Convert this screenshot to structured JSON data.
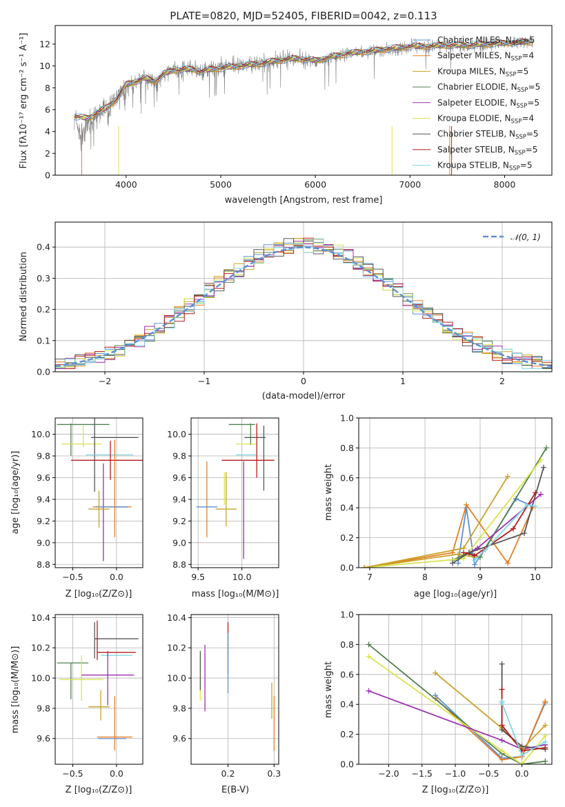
{
  "figure": {
    "title": "PLATE=0820, MJD=52405, FIBERID=0042, z=0.113"
  },
  "series_colors": [
    "#5b8fd6",
    "#e57d23",
    "#c9a227",
    "#4f7e4f",
    "#9b2fae",
    "#d9e34a",
    "#555555",
    "#b5191a",
    "#7fd6e4"
  ],
  "series_names": [
    "Chabrier MILES, N_SSP=5",
    "Salpeter MILES, N_SSP=4",
    "Kroupa MILES, N_SSP=5",
    "Chabrier ELODIE, N_SSP=5",
    "Salpeter ELODIE, N_SSP=5",
    "Kroupa ELODIE, N_SSP=4",
    "Chabrier STELIB, N_SSP=5",
    "Salpeter STELIB, N_SSP=5",
    "Kroupa STELIB, N_SSP=5"
  ],
  "chart_data": [
    {
      "id": "spectrum",
      "type": "line",
      "xlabel": "wavelength [Angstrom, rest frame]",
      "ylabel": "Flux [f_λ 10^-17 erg cm^-2 s^-1 A^-1]",
      "xlim": [
        3250,
        8500
      ],
      "ylim": [
        0,
        13.7
      ],
      "xticks": [
        4000,
        5000,
        6000,
        7000,
        8000
      ],
      "yticks": [
        0,
        2,
        4,
        6,
        8,
        10,
        12
      ],
      "legend_position": "right",
      "model_continuum": {
        "x": [
          3450,
          3600,
          3700,
          3800,
          3900,
          4000,
          4100,
          4200,
          4300,
          4400,
          4500,
          4600,
          4700,
          4800,
          4900,
          5000,
          5200,
          5400,
          5600,
          5800,
          6000,
          6200,
          6400,
          6600,
          6800,
          7000,
          7200,
          7400,
          7600,
          7800,
          8000,
          8200,
          8300
        ],
        "y": [
          5.4,
          5.2,
          5.8,
          6.2,
          7.0,
          8.3,
          8.6,
          8.9,
          8.6,
          9.3,
          9.6,
          9.7,
          9.7,
          9.5,
          9.7,
          9.8,
          10.0,
          10.2,
          10.5,
          10.7,
          10.5,
          10.9,
          11.2,
          11.4,
          11.6,
          11.8,
          11.8,
          11.9,
          11.9,
          12.0,
          12.1,
          12.2,
          12.2
        ]
      },
      "data_curve": {
        "x": [
          3450,
          3520,
          3600,
          3700,
          3800,
          3900,
          4000,
          4100,
          4200,
          4300,
          4400,
          4500,
          4600,
          4700,
          4800,
          4900,
          5000,
          5200,
          5400,
          5600,
          5800,
          6000,
          6200,
          6400,
          6600,
          6800,
          7000,
          7200,
          7400,
          7600,
          7800,
          8000,
          8200,
          8300
        ],
        "y": [
          5.6,
          3.5,
          4.8,
          5.4,
          5.9,
          7.0,
          8.0,
          8.6,
          8.8,
          8.4,
          9.2,
          9.6,
          9.6,
          9.8,
          9.3,
          9.8,
          9.9,
          10.1,
          10.2,
          10.5,
          10.7,
          10.4,
          10.8,
          11.2,
          11.4,
          11.5,
          11.8,
          11.7,
          11.9,
          11.8,
          11.9,
          12.1,
          12.2,
          12.3
        ]
      }
    },
    {
      "id": "residual-histogram",
      "type": "histogram",
      "xlabel": "(data-model)/error",
      "ylabel": "Normed distribution",
      "xlim": [
        -2.5,
        2.5
      ],
      "ylim": [
        0,
        0.48
      ],
      "xticks": [
        -2,
        -1,
        0,
        1,
        2
      ],
      "yticks": [
        0,
        0.1,
        0.2,
        0.3,
        0.4
      ],
      "reference_curve_label": "N(0,1)",
      "bin_width": 0.1,
      "legend_position": "top-right"
    },
    {
      "id": "age-vs-Z",
      "type": "scatter",
      "xlabel": "Z [log10(Z/Z_sun)]",
      "ylabel": "age  [log10(age/yr)]",
      "xlim": [
        -0.7,
        0.3
      ],
      "ylim": [
        8.77,
        10.15
      ],
      "xticks": [
        -0.5,
        0.0
      ],
      "yticks": [
        8.8,
        9.0,
        9.2,
        9.4,
        9.6,
        9.8,
        10.0
      ],
      "errorbars": [
        {
          "s": 3,
          "x": -0.38,
          "xerr": 0.3,
          "y": 10.09,
          "yerr": 0.0
        },
        {
          "s": 3,
          "x": -0.52,
          "xerr": 0.0,
          "y": 9.95,
          "yerr": 0.15
        },
        {
          "s": 5,
          "x": -0.4,
          "xerr": 0.23,
          "y": 9.91,
          "yerr": 0.0
        },
        {
          "s": 5,
          "x": -0.38,
          "xerr": 0.0,
          "y": 9.98,
          "yerr": 0.1
        },
        {
          "s": 6,
          "x": -0.02,
          "xerr": 0.27,
          "y": 9.97,
          "yerr": 0.0
        },
        {
          "s": 6,
          "x": -0.25,
          "xerr": 0.0,
          "y": 9.82,
          "yerr": 0.35
        },
        {
          "s": 8,
          "x": -0.08,
          "xerr": 0.27,
          "y": 9.81,
          "yerr": 0.0
        },
        {
          "s": 7,
          "x": -0.07,
          "xerr": 0.45,
          "y": 9.76,
          "yerr": 0.0
        },
        {
          "s": 7,
          "x": -0.07,
          "xerr": 0.0,
          "y": 9.76,
          "yerr": 0.18
        },
        {
          "s": 4,
          "x": -0.15,
          "xerr": 0.0,
          "y": 9.28,
          "yerr": 0.45
        },
        {
          "s": 1,
          "x": -0.05,
          "xerr": 0.22,
          "y": 9.33,
          "yerr": 0.0
        },
        {
          "s": 1,
          "x": -0.02,
          "xerr": 0.0,
          "y": 9.5,
          "yerr": 0.45
        },
        {
          "s": 0,
          "x": -0.05,
          "xerr": 0.18,
          "y": 9.33,
          "yerr": 0.0
        },
        {
          "s": 2,
          "x": -0.2,
          "xerr": 0.12,
          "y": 9.31,
          "yerr": 0.0
        },
        {
          "s": 2,
          "x": -0.2,
          "xerr": 0.0,
          "y": 9.31,
          "yerr": 0.17
        }
      ]
    },
    {
      "id": "age-vs-mass",
      "type": "scatter",
      "xlabel": "mass [log10(M/M_sun)]",
      "ylabel": "",
      "xlim": [
        9.42,
        10.42
      ],
      "ylim": [
        8.77,
        10.15
      ],
      "xticks": [
        9.5,
        10.0
      ],
      "yticks": [
        8.8,
        9.0,
        9.2,
        9.4,
        9.6,
        9.8,
        10.0
      ],
      "errorbars": [
        {
          "s": 3,
          "x": 10.0,
          "xerr": 0.15,
          "y": 10.09,
          "yerr": 0.0
        },
        {
          "s": 3,
          "x": 10.1,
          "xerr": 0.0,
          "y": 10.0,
          "yerr": 0.1
        },
        {
          "s": 6,
          "x": 10.15,
          "xerr": 0.12,
          "y": 9.97,
          "yerr": 0.0
        },
        {
          "s": 6,
          "x": 10.25,
          "xerr": 0.0,
          "y": 9.78,
          "yerr": 0.3
        },
        {
          "s": 5,
          "x": 10.05,
          "xerr": 0.12,
          "y": 9.91,
          "yerr": 0.0
        },
        {
          "s": 8,
          "x": 10.05,
          "xerr": 0.12,
          "y": 9.81,
          "yerr": 0.0
        },
        {
          "s": 7,
          "x": 10.07,
          "xerr": 0.3,
          "y": 9.76,
          "yerr": 0.0
        },
        {
          "s": 7,
          "x": 10.17,
          "xerr": 0.0,
          "y": 9.85,
          "yerr": 0.25
        },
        {
          "s": 4,
          "x": 10.02,
          "xerr": 0.0,
          "y": 9.3,
          "yerr": 0.45
        },
        {
          "s": 1,
          "x": 9.6,
          "xerr": 0.0,
          "y": 9.4,
          "yerr": 0.35
        },
        {
          "s": 0,
          "x": 9.6,
          "xerr": 0.12,
          "y": 9.33,
          "yerr": 0.0
        },
        {
          "s": 2,
          "x": 9.82,
          "xerr": 0.12,
          "y": 9.31,
          "yerr": 0.0
        },
        {
          "s": 2,
          "x": 9.82,
          "xerr": 0.0,
          "y": 9.4,
          "yerr": 0.25
        },
        {
          "s": 5,
          "x": 9.8,
          "xerr": 0.0,
          "y": 9.5,
          "yerr": 0.15
        }
      ]
    },
    {
      "id": "mass-weight-vs-age",
      "type": "line",
      "xlabel": "age  [log10(age/yr)]",
      "ylabel": "mass weight",
      "xlim": [
        6.8,
        10.3
      ],
      "ylim": [
        0,
        1.0
      ],
      "xticks": [
        7,
        8,
        9,
        10
      ],
      "yticks": [
        0,
        0.2,
        0.4,
        0.6,
        0.8,
        1.0
      ],
      "series": [
        {
          "s": 0,
          "x": [
            8.6,
            8.75,
            8.9,
            9.65,
            9.95
          ],
          "y": [
            0.03,
            0.4,
            0.02,
            0.46,
            0.41
          ]
        },
        {
          "s": 1,
          "x": [
            6.9,
            8.5,
            8.75,
            9.5,
            9.95
          ],
          "y": [
            0.0,
            0.1,
            0.42,
            0.03,
            0.4
          ]
        },
        {
          "s": 2,
          "x": [
            6.9,
            8.6,
            8.9
          ],
          "y": [
            0.0,
            0.09,
            0.07
          ]
        },
        {
          "s": 3,
          "x": [
            8.5,
            8.8,
            9.0,
            10.2
          ],
          "y": [
            0.05,
            0.1,
            0.07,
            0.8
          ]
        },
        {
          "s": 4,
          "x": [
            8.8,
            8.95,
            10.1
          ],
          "y": [
            0.1,
            0.13,
            0.49
          ]
        },
        {
          "s": 5,
          "x": [
            6.9,
            8.7,
            10.1
          ],
          "y": [
            0.0,
            0.06,
            0.72
          ]
        },
        {
          "s": 6,
          "x": [
            8.5,
            8.8,
            9.8,
            10.15
          ],
          "y": [
            0.03,
            0.1,
            0.23,
            0.67
          ]
        },
        {
          "s": 7,
          "x": [
            8.7,
            8.9,
            9.6,
            10.0
          ],
          "y": [
            0.1,
            0.08,
            0.26,
            0.5
          ]
        },
        {
          "s": 8,
          "x": [
            8.9,
            9.1,
            9.85,
            10.0
          ],
          "y": [
            0.05,
            0.12,
            0.42,
            0.41
          ]
        },
        {
          "s": 2,
          "x": [
            6.9,
            8.7,
            9.5
          ],
          "y": [
            0.0,
            0.13,
            0.61
          ]
        }
      ]
    },
    {
      "id": "mass-vs-Z",
      "type": "scatter",
      "xlabel": "Z [log10(Z/Z_sun)]",
      "ylabel": "mass [log10(M/M_sun)]",
      "xlim": [
        -0.7,
        0.3
      ],
      "ylim": [
        9.43,
        10.42
      ],
      "xticks": [
        -0.5,
        0.0
      ],
      "yticks": [
        9.6,
        9.8,
        10.0,
        10.2,
        10.4
      ],
      "errorbars": [
        {
          "s": 3,
          "x": -0.5,
          "xerr": 0.18,
          "y": 10.1,
          "yerr": 0.0
        },
        {
          "s": 3,
          "x": -0.52,
          "xerr": 0.0,
          "y": 9.98,
          "yerr": 0.12
        },
        {
          "s": 6,
          "x": 0.0,
          "xerr": 0.25,
          "y": 10.26,
          "yerr": 0.0
        },
        {
          "s": 6,
          "x": -0.25,
          "xerr": 0.0,
          "y": 10.25,
          "yerr": 0.12
        },
        {
          "s": 7,
          "x": 0.0,
          "xerr": 0.22,
          "y": 10.17,
          "yerr": 0.0
        },
        {
          "s": 7,
          "x": -0.22,
          "xerr": 0.0,
          "y": 10.25,
          "yerr": 0.13
        },
        {
          "s": 8,
          "x": 0.0,
          "xerr": 0.18,
          "y": 10.15,
          "yerr": 0.0
        },
        {
          "s": 5,
          "x": -0.4,
          "xerr": 0.0,
          "y": 10.0,
          "yerr": 0.15
        },
        {
          "s": 5,
          "x": -0.4,
          "xerr": 0.25,
          "y": 9.99,
          "yerr": 0.0
        },
        {
          "s": 4,
          "x": -0.1,
          "xerr": 0.3,
          "y": 10.02,
          "yerr": 0.0
        },
        {
          "s": 4,
          "x": -0.1,
          "xerr": 0.0,
          "y": 10.0,
          "yerr": 0.18
        },
        {
          "s": 2,
          "x": -0.2,
          "xerr": 0.12,
          "y": 9.81,
          "yerr": 0.0
        },
        {
          "s": 2,
          "x": -0.18,
          "xerr": 0.0,
          "y": 9.82,
          "yerr": 0.1
        },
        {
          "s": 1,
          "x": -0.02,
          "xerr": 0.2,
          "y": 9.61,
          "yerr": 0.0
        },
        {
          "s": 1,
          "x": -0.02,
          "xerr": 0.0,
          "y": 9.7,
          "yerr": 0.18
        },
        {
          "s": 0,
          "x": -0.05,
          "xerr": 0.16,
          "y": 9.6,
          "yerr": 0.0
        }
      ]
    },
    {
      "id": "mass-vs-EBV",
      "type": "scatter",
      "xlabel": "E(B-V)",
      "ylabel": "",
      "xlim": [
        0.12,
        0.31
      ],
      "ylim": [
        9.43,
        10.42
      ],
      "xticks": [
        0.2,
        0.3
      ],
      "yticks": [
        9.6,
        9.8,
        10.0,
        10.2,
        10.4
      ],
      "errorbars": [
        {
          "s": 5,
          "x": 0.14,
          "xerr": 0.0,
          "y": 10.0,
          "yerr": 0.15
        },
        {
          "s": 6,
          "x": 0.14,
          "xerr": 0.0,
          "y": 10.05,
          "yerr": 0.13
        },
        {
          "s": 4,
          "x": 0.15,
          "xerr": 0.0,
          "y": 10.0,
          "yerr": 0.22
        },
        {
          "s": 7,
          "x": 0.2,
          "xerr": 0.0,
          "y": 10.2,
          "yerr": 0.17
        },
        {
          "s": 8,
          "x": 0.2,
          "xerr": 0.0,
          "y": 10.15,
          "yerr": 0.13
        },
        {
          "s": 0,
          "x": 0.2,
          "xerr": 0.0,
          "y": 10.1,
          "yerr": 0.2
        },
        {
          "s": 2,
          "x": 0.295,
          "xerr": 0.0,
          "y": 9.85,
          "yerr": 0.12
        },
        {
          "s": 1,
          "x": 0.3,
          "xerr": 0.0,
          "y": 9.7,
          "yerr": 0.18
        }
      ]
    },
    {
      "id": "mass-weight-vs-Z",
      "type": "line",
      "xlabel": "Z [log10(Z/Z_sun)]",
      "ylabel": "mass weight",
      "xlim": [
        -2.45,
        0.45
      ],
      "ylim": [
        0,
        1.0
      ],
      "xticks": [
        -2.0,
        -1.5,
        -1.0,
        -0.5,
        0.0
      ],
      "yticks": [
        0,
        0.2,
        0.4,
        0.6,
        0.8,
        1.0
      ],
      "series": [
        {
          "s": 0,
          "x": [
            -1.3,
            -0.3,
            0.0,
            0.35
          ],
          "y": [
            0.46,
            0.04,
            0.05,
            0.41
          ]
        },
        {
          "s": 1,
          "x": [
            -1.3,
            -0.3,
            0.0,
            0.35
          ],
          "y": [
            0.44,
            0.03,
            0.05,
            0.42
          ]
        },
        {
          "s": 3,
          "x": [
            -2.3,
            -0.3,
            0.0,
            0.35
          ],
          "y": [
            0.8,
            0.07,
            0.0,
            0.02
          ]
        },
        {
          "s": 5,
          "x": [
            -2.3,
            -0.3,
            0.0,
            0.35
          ],
          "y": [
            0.72,
            0.09,
            0.0,
            0.19
          ]
        },
        {
          "s": 4,
          "x": [
            -2.3,
            -0.3,
            0.0,
            0.35
          ],
          "y": [
            0.49,
            0.16,
            0.1,
            0.13
          ]
        },
        {
          "s": 2,
          "x": [
            -1.3,
            -0.3,
            0.0,
            0.35
          ],
          "y": [
            0.61,
            0.24,
            0.1,
            0.26
          ]
        },
        {
          "s": 6,
          "x": [
            -0.3,
            -0.3,
            0.0,
            0.35
          ],
          "y": [
            0.67,
            0.23,
            0.12,
            0.1
          ]
        },
        {
          "s": 7,
          "x": [
            -0.3,
            -0.3,
            0.0,
            0.35
          ],
          "y": [
            0.5,
            0.26,
            0.09,
            0.11
          ]
        },
        {
          "s": 8,
          "x": [
            -0.3,
            -0.3,
            0.0,
            0.35
          ],
          "y": [
            0.42,
            0.41,
            0.06,
            0.15
          ]
        }
      ]
    }
  ]
}
